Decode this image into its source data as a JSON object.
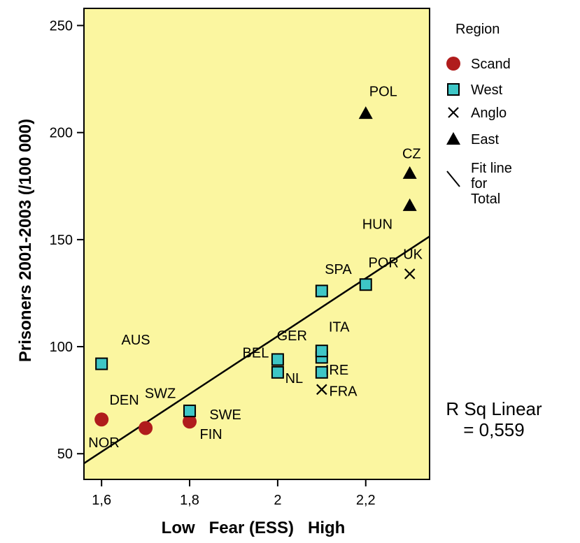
{
  "chart_data": {
    "type": "scatter",
    "xlabel": "Low   Fear (ESS)   High",
    "ylabel": "Prisoners 2001-2003 (/100 000)",
    "xlim": [
      1.56,
      2.345
    ],
    "ylim": [
      38,
      258
    ],
    "x_ticks": [
      1.6,
      1.8,
      2.0,
      2.2
    ],
    "x_tick_labels": [
      "1,6",
      "1,8",
      "2",
      "2,2"
    ],
    "y_ticks": [
      50,
      100,
      150,
      200,
      250
    ],
    "y_tick_labels": [
      "50",
      "100",
      "150",
      "200",
      "250"
    ],
    "plot_background": "#fbf6a0",
    "grid": false,
    "legend_position": "right",
    "legend_title": "Region",
    "series": [
      {
        "name": "Scand",
        "marker": "circle",
        "color": "#b01c1c",
        "points": [
          {
            "label": "DEN",
            "x": 1.6,
            "y": 66
          },
          {
            "label": "NOR",
            "x": 1.7,
            "y": 62
          },
          {
            "label": "FIN",
            "x": 1.8,
            "y": 65
          }
        ]
      },
      {
        "name": "West",
        "marker": "square",
        "color": "#3ec6c6",
        "points": [
          {
            "label": "AUS",
            "x": 1.6,
            "y": 92
          },
          {
            "label": "SWE",
            "x": 1.8,
            "y": 70
          },
          {
            "label": "SWZ",
            "x": 1.8,
            "y": 70
          },
          {
            "label": "BEL",
            "x": 2.0,
            "y": 94
          },
          {
            "label": "NL",
            "x": 2.0,
            "y": 88
          },
          {
            "label": "GER",
            "x": 2.1,
            "y": 95
          },
          {
            "label": "ITA",
            "x": 2.1,
            "y": 98
          },
          {
            "label": "IRE",
            "x": 2.1,
            "y": 88
          },
          {
            "label": "SPA",
            "x": 2.1,
            "y": 126
          },
          {
            "label": "POR",
            "x": 2.2,
            "y": 129
          }
        ]
      },
      {
        "name": "Anglo",
        "marker": "x",
        "color": "#000000",
        "points": [
          {
            "label": "FRA",
            "x": 2.1,
            "y": 80
          },
          {
            "label": "UK",
            "x": 2.3,
            "y": 134
          }
        ]
      },
      {
        "name": "East",
        "marker": "triangle",
        "color": "#000000",
        "points": [
          {
            "label": "POL",
            "x": 2.2,
            "y": 209
          },
          {
            "label": "CZ",
            "x": 2.3,
            "y": 181
          },
          {
            "label": "HUN",
            "x": 2.3,
            "y": 166
          }
        ]
      }
    ],
    "fit_line": {
      "name": "Fit line for Total",
      "x": [
        1.56,
        2.345
      ],
      "y": [
        45.5,
        151.5
      ],
      "r_squared_text": "R Sq Linear = 0,559"
    },
    "labels": [
      {
        "text": "AUS",
        "x": 1.645,
        "y": 101
      },
      {
        "text": "DEN",
        "x": 1.618,
        "y": 73
      },
      {
        "text": "SWZ",
        "x": 1.698,
        "y": 76
      },
      {
        "text": "NOR",
        "x": 1.57,
        "y": 53
      },
      {
        "text": "SWE",
        "x": 1.845,
        "y": 66
      },
      {
        "text": "FIN",
        "x": 1.823,
        "y": 57
      },
      {
        "text": "BEL",
        "x": 1.92,
        "y": 95
      },
      {
        "text": "GER",
        "x": 1.998,
        "y": 103
      },
      {
        "text": "NL",
        "x": 2.017,
        "y": 83
      },
      {
        "text": "ITA",
        "x": 2.116,
        "y": 107
      },
      {
        "text": "IRE",
        "x": 2.108,
        "y": 87
      },
      {
        "text": "FRA",
        "x": 2.117,
        "y": 77
      },
      {
        "text": "SPA",
        "x": 2.107,
        "y": 134
      },
      {
        "text": "POR",
        "x": 2.206,
        "y": 137
      },
      {
        "text": "UK",
        "x": 2.285,
        "y": 141
      },
      {
        "text": "POL",
        "x": 2.208,
        "y": 217
      },
      {
        "text": "CZ",
        "x": 2.283,
        "y": 188
      },
      {
        "text": "HUN",
        "x": 2.192,
        "y": 155
      }
    ],
    "legend_entries": [
      {
        "name": "Scand",
        "marker": "circle"
      },
      {
        "name": "West",
        "marker": "square"
      },
      {
        "name": "Anglo",
        "marker": "x"
      },
      {
        "name": "East",
        "marker": "triangle"
      },
      {
        "name": "Fit line for Total",
        "marker": "line",
        "lines": [
          "Fit line",
          "for",
          "Total"
        ]
      }
    ]
  }
}
